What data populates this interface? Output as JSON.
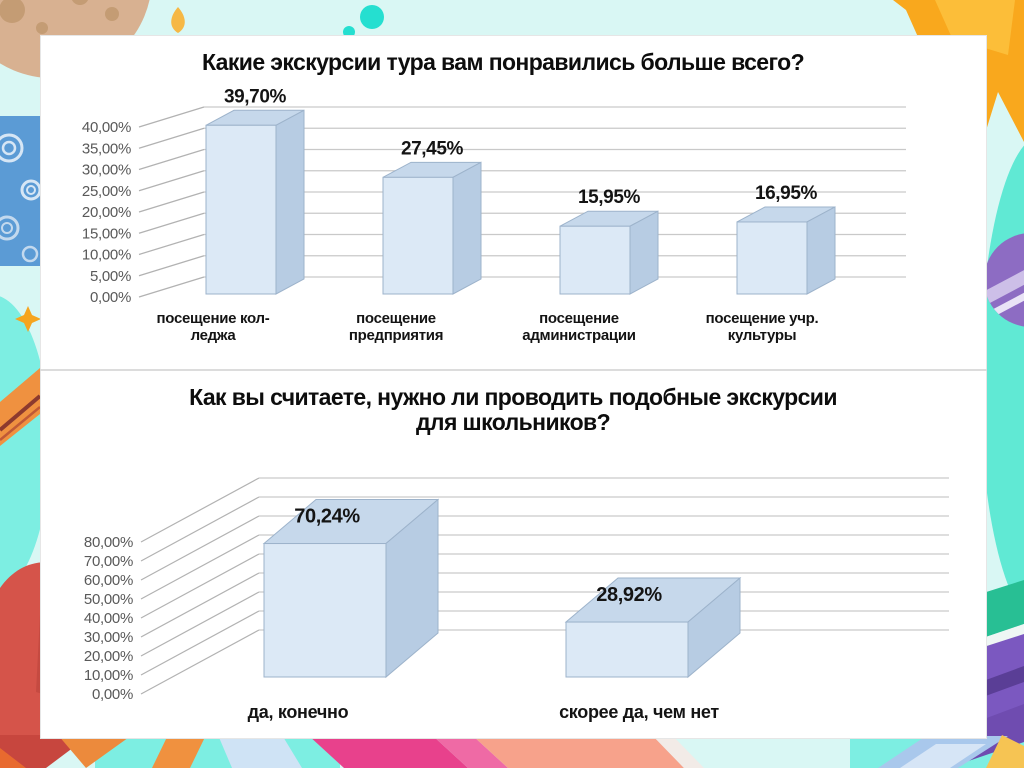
{
  "slide": {
    "kind": "survey-results-slide",
    "panel_bg": "#ffffff",
    "background_palette": {
      "base_cyan": "#d9f7f4",
      "bright_teal": "#7deee2",
      "moon_tan": "#d8b191",
      "swirl_blue": "#5b9bd5",
      "star_orange": "#f9a81d",
      "ball_purple": "#8d6cc3",
      "rocket_red": "#d5544a",
      "magenta": "#e8418c",
      "book_purple": "#7b58c0",
      "book_green": "#28bf94"
    }
  },
  "chart_data": [
    {
      "type": "bar",
      "projection": "3d-column",
      "title": "Какие экскурсии тура вам понравились больше всего?",
      "title_lines": [
        "Какие экскурсии тура вам понравились больше всего?"
      ],
      "categories": [
        "посещение колледжа",
        "посещение предприятия",
        "посещение администрации",
        "посещение учр. культуры"
      ],
      "category_lines": [
        [
          "посещение кол-",
          "леджа"
        ],
        [
          "посещение",
          "предприятия"
        ],
        [
          "посещение",
          "администрации"
        ],
        [
          "посещение учр.",
          "культуры"
        ]
      ],
      "values": [
        39.7,
        27.45,
        15.95,
        16.95
      ],
      "data_labels": [
        "39,70%",
        "27,45%",
        "15,95%",
        "16,95%"
      ],
      "xlabel": "",
      "ylabel": "",
      "ylim": [
        0,
        40
      ],
      "ytick_step": 5,
      "ytick_labels": [
        "0,00%",
        "5,00%",
        "10,00%",
        "15,00%",
        "20,00%",
        "25,00%",
        "30,00%",
        "35,00%",
        "40,00%"
      ],
      "grid": true,
      "legend": false,
      "colors": {
        "bar_front": "#dce9f6",
        "bar_top": "#c6d8eb",
        "bar_side": "#b7cce3",
        "bar_stroke": "#9db3cb",
        "grid_line": "#c9c9c9",
        "tick_line": "#b2b2b2",
        "axis_text": "#595959",
        "label_text": "#141414"
      }
    },
    {
      "type": "bar",
      "projection": "3d-column",
      "title": "Как вы считаете, нужно ли проводить подобные экскурсии для школьников?",
      "title_lines": [
        "Как вы считаете, нужно ли проводить подобные экскурсии",
        "для школьников?"
      ],
      "categories": [
        "да, конечно",
        "скорее да, чем нет"
      ],
      "category_lines": [
        [
          "да, конечно"
        ],
        [
          "скорее да, чем нет"
        ]
      ],
      "values": [
        70.24,
        28.92
      ],
      "data_labels": [
        "70,24%",
        "28,92%"
      ],
      "xlabel": "",
      "ylabel": "",
      "ylim": [
        0,
        80
      ],
      "ytick_step": 10,
      "ytick_labels": [
        "0,00%",
        "10,00%",
        "20,00%",
        "30,00%",
        "40,00%",
        "50,00%",
        "60,00%",
        "70,00%",
        "80,00%"
      ],
      "grid": true,
      "legend": false,
      "colors": {
        "bar_front": "#dce9f6",
        "bar_top": "#c6d8eb",
        "bar_side": "#b7cce3",
        "bar_stroke": "#9db3cb",
        "grid_line": "#c9c9c9",
        "tick_line": "#b2b2b2",
        "axis_text": "#595959",
        "label_text": "#141414"
      }
    }
  ]
}
